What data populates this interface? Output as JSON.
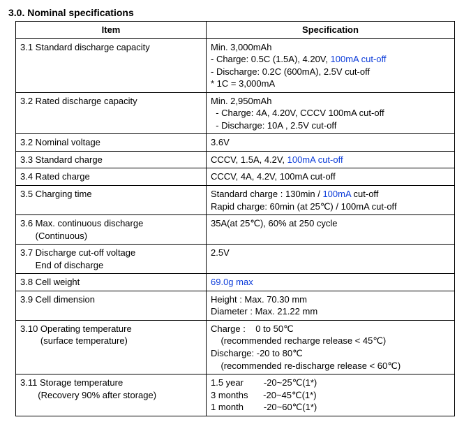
{
  "heading": "3.0. Nominal specifications",
  "headers": {
    "item": "Item",
    "spec": "Specification"
  },
  "rows": {
    "r31": {
      "item": "3.1 Standard discharge capacity",
      "l1": "Min. 3,000mAh",
      "l2a": "- Charge: 0.5C (1.5A), 4.20V, ",
      "l2b": "100mA cut-off",
      "l3": "- Discharge: 0.2C (600mA), 2.5V cut-off",
      "l4": "* 1C = 3,000mA"
    },
    "r32a": {
      "item": "3.2 Rated discharge capacity",
      "l1": "Min. 2,950mAh",
      "l2": "  - Charge: 4A, 4.20V, CCCV 100mA cut-off",
      "l3": "  - Discharge: 10A , 2.5V cut-off"
    },
    "r32b": {
      "item": "3.2 Nominal voltage",
      "spec": "3.6V"
    },
    "r33": {
      "item": "3.3 Standard charge",
      "s1": "CCCV, 1.5A, 4.2V, ",
      "s2": "100mA cut-off"
    },
    "r34": {
      "item": "3.4 Rated charge",
      "spec": "CCCV, 4A, 4.2V, 100mA cut-off"
    },
    "r35": {
      "item": "3.5 Charging time",
      "l1a": "Standard charge : 130min / ",
      "l1b": "100mA",
      "l1c": " cut-off",
      "l2": "Rapid charge: 60min (at 25℃) / 100mA cut-off"
    },
    "r36": {
      "item_l1": "3.6 Max. continuous discharge",
      "item_l2": "      (Continuous)",
      "spec": "35A(at 25℃), 60% at 250 cycle"
    },
    "r37": {
      "item_l1": "3.7 Discharge cut-off voltage",
      "item_l2": "      End of discharge",
      "spec": "2.5V"
    },
    "r38": {
      "item": "3.8 Cell weight",
      "spec": "69.0g max"
    },
    "r39": {
      "item": "3.9 Cell dimension",
      "l1": "Height : Max. 70.30 mm",
      "l2": "Diameter : Max. 21.22 mm"
    },
    "r310": {
      "item_l1": "3.10 Operating temperature",
      "item_l2": "        (surface temperature)",
      "l1": "Charge :    0 to 50℃",
      "l2": "    (recommended recharge release < 45℃)",
      "l3": "Discharge: -20 to 80℃",
      "l4": "    (recommended re-discharge release < 60℃)"
    },
    "r311": {
      "item_l1": "3.11 Storage temperature",
      "item_l2": "       (Recovery 90% after storage)",
      "l1": "1.5 year        -20~25℃(1*)",
      "l2": "3 months      -20~45℃(1*)",
      "l3": "1 month        -20~60℃(1*)"
    }
  }
}
